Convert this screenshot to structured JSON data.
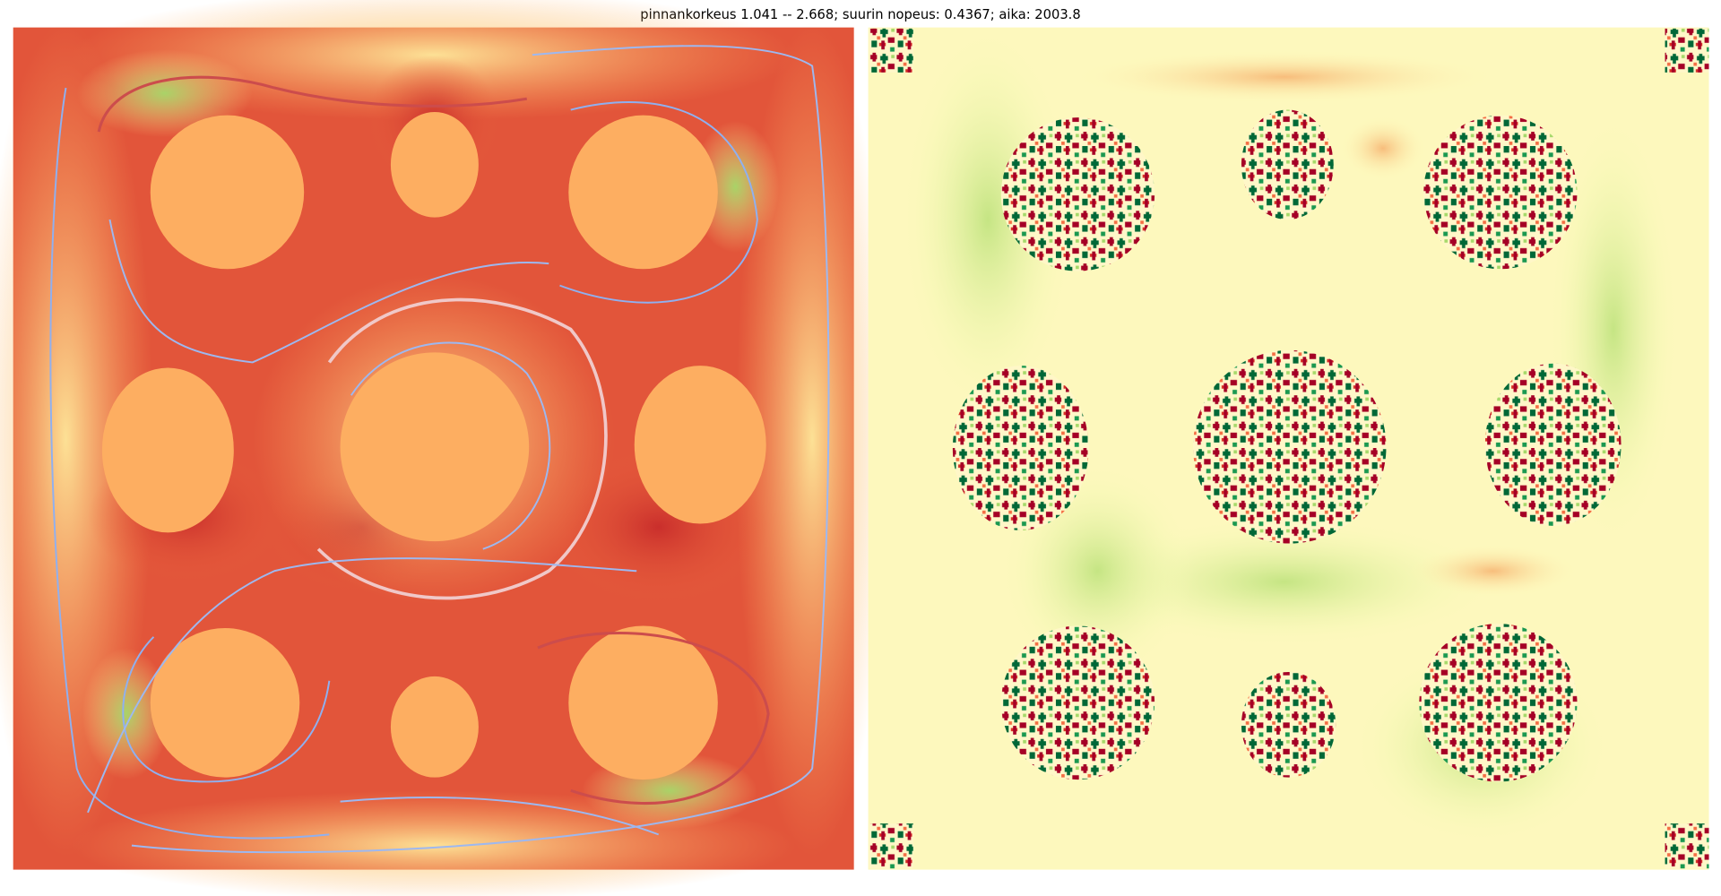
{
  "title": "pinnankorkeus 1.041 -- 2.668;   suurin nopeus: 0.4367;  aika: 2003.8"
}
